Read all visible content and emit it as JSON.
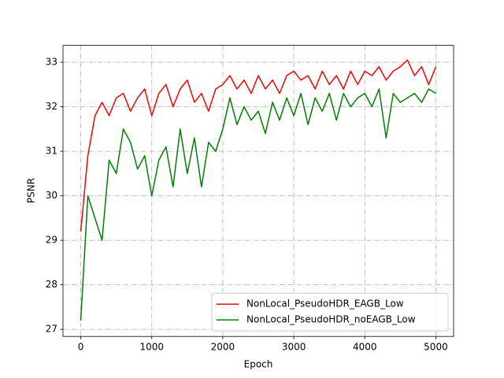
{
  "chart_data": {
    "type": "line",
    "x_label": "Epoch",
    "y_label": "PSNR",
    "x": [
      0,
      100,
      200,
      300,
      400,
      500,
      600,
      700,
      800,
      900,
      1000,
      1100,
      1200,
      1300,
      1400,
      1500,
      1600,
      1700,
      1800,
      1900,
      2000,
      2100,
      2200,
      2300,
      2400,
      2500,
      2600,
      2700,
      2800,
      2900,
      3000,
      3100,
      3200,
      3300,
      3400,
      3500,
      3600,
      3700,
      3800,
      3900,
      4000,
      4100,
      4200,
      4300,
      4400,
      4500,
      4600,
      4700,
      4800,
      4900,
      5000
    ],
    "series": [
      {
        "name": "NonLocal_PseudoHDR_EAGB_Low",
        "color": "#ff0000",
        "values": [
          29.2,
          30.9,
          31.8,
          32.1,
          31.8,
          32.2,
          32.3,
          31.9,
          32.2,
          32.4,
          31.8,
          32.3,
          32.5,
          32.0,
          32.4,
          32.6,
          32.1,
          32.3,
          31.9,
          32.4,
          32.5,
          32.7,
          32.4,
          32.6,
          32.3,
          32.7,
          32.4,
          32.6,
          32.3,
          32.7,
          32.8,
          32.6,
          32.7,
          32.4,
          32.8,
          32.5,
          32.7,
          32.4,
          32.8,
          32.5,
          32.8,
          32.7,
          32.9,
          32.6,
          32.8,
          32.9,
          33.05,
          32.7,
          32.9,
          32.5,
          32.9
        ]
      },
      {
        "name": "NonLocal_PseudoHDR_noEAGB_Low",
        "color": "#008000",
        "values": [
          27.2,
          30.0,
          29.5,
          29.0,
          30.8,
          30.5,
          31.5,
          31.2,
          30.6,
          30.9,
          30.0,
          30.8,
          31.1,
          30.2,
          31.5,
          30.5,
          31.3,
          30.2,
          31.2,
          31.0,
          31.5,
          32.2,
          31.6,
          32.0,
          31.7,
          31.9,
          31.4,
          32.1,
          31.7,
          32.2,
          31.8,
          32.3,
          31.6,
          32.2,
          31.9,
          32.3,
          31.7,
          32.3,
          32.0,
          32.2,
          32.3,
          32.0,
          32.4,
          31.3,
          32.3,
          32.1,
          32.2,
          32.3,
          32.1,
          32.4,
          32.3
        ]
      }
    ],
    "xlim": [
      -250,
      5250
    ],
    "xticks": [
      0,
      1000,
      2000,
      3000,
      4000,
      5000
    ],
    "ylim": [
      26.84,
      33.38
    ],
    "yticks": [
      27,
      28,
      29,
      30,
      31,
      32,
      33
    ],
    "grid": true,
    "legend": "lower right"
  }
}
